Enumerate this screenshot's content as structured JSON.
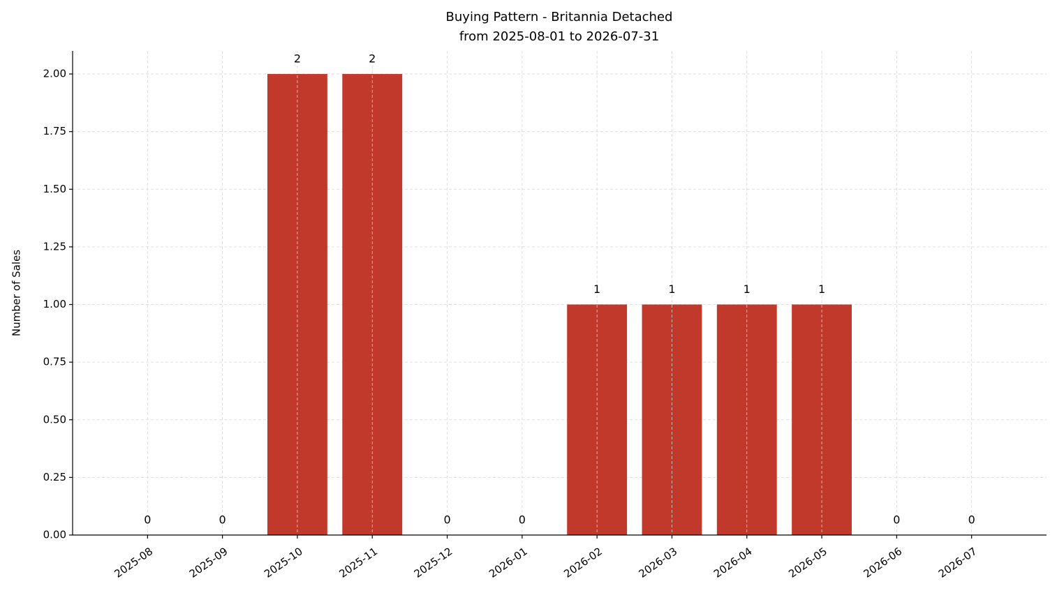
{
  "chart_data": {
    "type": "bar",
    "title": "Buying Pattern - Britannia Detached",
    "subtitle": "from 2025-08-01 to 2026-07-31",
    "y_label": "Number of Sales",
    "categories": [
      "2025-08",
      "2025-09",
      "2025-10",
      "2025-11",
      "2025-12",
      "2026-01",
      "2026-02",
      "2026-03",
      "2026-04",
      "2026-05",
      "2026-06",
      "2026-07"
    ],
    "values": [
      0,
      0,
      2,
      2,
      0,
      0,
      1,
      1,
      1,
      1,
      0,
      0
    ],
    "color": "#c0392b",
    "ylim": [
      0,
      2.1
    ],
    "yticks": [
      {
        "value": 0,
        "label": "0.00"
      },
      {
        "value": 0.25,
        "label": "0.25"
      },
      {
        "value": 0.5,
        "label": "0.50"
      },
      {
        "value": 0.75,
        "label": "0.75"
      },
      {
        "value": 1,
        "label": "1.00"
      },
      {
        "value": 1.25,
        "label": "1.25"
      },
      {
        "value": 1.5,
        "label": "1.50"
      },
      {
        "value": 1.75,
        "label": "1.75"
      },
      {
        "value": 2,
        "label": "2.00"
      }
    ],
    "grid": true
  }
}
